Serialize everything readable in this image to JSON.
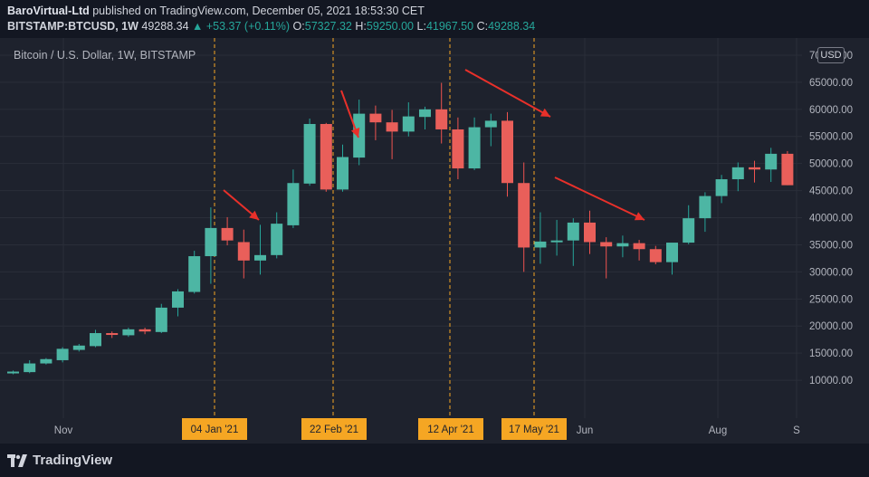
{
  "header": {
    "publisher": "BaroVirtual-Ltd",
    "published_text": "published on TradingView.com, December 05, 2021 18:53:30 CET",
    "symbol": "BITSTAMP:BTCUSD, 1W",
    "last_price": "49288.34",
    "change": "▲ +53.37 (+0.11%)",
    "o_label": "O:",
    "o_value": "57327.32",
    "h_label": "H:",
    "h_value": "59250.00",
    "l_label": "L:",
    "l_value": "41967.50",
    "c_label": "C:",
    "c_value": "49288.34"
  },
  "chart_title": "Bitcoin / U.S. Dollar, 1W, BITSTAMP",
  "currency_badge": "USD",
  "footer": {
    "logo_text": "TradingView"
  },
  "colors": {
    "up": "#26a69a",
    "down": "#ef5350",
    "up_body": "#4db6a4",
    "down_body": "#e95f5a",
    "grid": "#2a2e39",
    "axis_text": "#b2b5be",
    "vline": "#f5a623",
    "date_tag_bg": "#f5a623",
    "arrow": "#e8302a"
  },
  "chart_data": {
    "type": "candlestick",
    "title": "Bitcoin / U.S. Dollar, 1W, BITSTAMP",
    "y_axis_ticks": [
      "10000.00",
      "15000.00",
      "20000.00",
      "25000.00",
      "30000.00",
      "35000.00",
      "40000.00",
      "45000.00",
      "50000.00",
      "55000.00",
      "60000.00",
      "65000.00",
      "70000.00"
    ],
    "ylim": [
      3000,
      72500
    ],
    "x_axis_labels": [
      "Nov",
      "Jun",
      "Aug",
      "S"
    ],
    "highlighted_dates": [
      "04 Jan '21",
      "22 Feb '21",
      "12 Apr '21",
      "17 May '21"
    ],
    "candles": [
      {
        "o": 11300,
        "h": 11800,
        "l": 11100,
        "c": 11600
      },
      {
        "o": 11500,
        "h": 13700,
        "l": 11300,
        "c": 13100
      },
      {
        "o": 13100,
        "h": 14100,
        "l": 12900,
        "c": 13900
      },
      {
        "o": 13700,
        "h": 16100,
        "l": 13300,
        "c": 15800
      },
      {
        "o": 15600,
        "h": 16700,
        "l": 15300,
        "c": 16400
      },
      {
        "o": 16300,
        "h": 19300,
        "l": 16100,
        "c": 18700
      },
      {
        "o": 18700,
        "h": 19000,
        "l": 17800,
        "c": 18500
      },
      {
        "o": 18300,
        "h": 19700,
        "l": 18000,
        "c": 19400
      },
      {
        "o": 19400,
        "h": 19700,
        "l": 18500,
        "c": 19000
      },
      {
        "o": 18900,
        "h": 24100,
        "l": 18700,
        "c": 23400
      },
      {
        "o": 23400,
        "h": 26800,
        "l": 21800,
        "c": 26400
      },
      {
        "o": 26300,
        "h": 33900,
        "l": 26000,
        "c": 32900
      },
      {
        "o": 32900,
        "h": 41900,
        "l": 27800,
        "c": 38100
      },
      {
        "o": 38100,
        "h": 40100,
        "l": 34900,
        "c": 35800
      },
      {
        "o": 35500,
        "h": 37800,
        "l": 28800,
        "c": 32100
      },
      {
        "o": 32100,
        "h": 38700,
        "l": 29500,
        "c": 33100
      },
      {
        "o": 33100,
        "h": 41000,
        "l": 32500,
        "c": 38900
      },
      {
        "o": 38600,
        "h": 48900,
        "l": 38100,
        "c": 46400
      },
      {
        "o": 46300,
        "h": 58300,
        "l": 45900,
        "c": 57300
      },
      {
        "o": 57300,
        "h": 57500,
        "l": 44800,
        "c": 45200
      },
      {
        "o": 45200,
        "h": 53500,
        "l": 44800,
        "c": 51200
      },
      {
        "o": 51100,
        "h": 61800,
        "l": 49700,
        "c": 59200
      },
      {
        "o": 59200,
        "h": 60700,
        "l": 54300,
        "c": 57600
      },
      {
        "o": 57600,
        "h": 59900,
        "l": 50800,
        "c": 55900
      },
      {
        "o": 55900,
        "h": 61300,
        "l": 55000,
        "c": 58700
      },
      {
        "o": 58600,
        "h": 60500,
        "l": 56300,
        "c": 60000
      },
      {
        "o": 60000,
        "h": 64900,
        "l": 53700,
        "c": 56300
      },
      {
        "o": 56300,
        "h": 58500,
        "l": 47100,
        "c": 49100
      },
      {
        "o": 49100,
        "h": 58500,
        "l": 48800,
        "c": 56700
      },
      {
        "o": 56700,
        "h": 59200,
        "l": 53200,
        "c": 57900
      },
      {
        "o": 57900,
        "h": 59500,
        "l": 43900,
        "c": 46400
      },
      {
        "o": 46400,
        "h": 50200,
        "l": 30000,
        "c": 34500
      },
      {
        "o": 34500,
        "h": 41000,
        "l": 31500,
        "c": 35600
      },
      {
        "o": 35600,
        "h": 39600,
        "l": 33000,
        "c": 35800
      },
      {
        "o": 35800,
        "h": 39900,
        "l": 31100,
        "c": 39100
      },
      {
        "o": 39100,
        "h": 41300,
        "l": 33300,
        "c": 35500
      },
      {
        "o": 35500,
        "h": 36400,
        "l": 28800,
        "c": 34700
      },
      {
        "o": 34700,
        "h": 36700,
        "l": 32700,
        "c": 35300
      },
      {
        "o": 35300,
        "h": 35900,
        "l": 32100,
        "c": 34200
      },
      {
        "o": 34200,
        "h": 34800,
        "l": 31400,
        "c": 31800
      },
      {
        "o": 31800,
        "h": 35300,
        "l": 29500,
        "c": 35400
      },
      {
        "o": 35400,
        "h": 42300,
        "l": 35100,
        "c": 39900
      },
      {
        "o": 39900,
        "h": 44700,
        "l": 37400,
        "c": 44000
      },
      {
        "o": 44000,
        "h": 47900,
        "l": 42700,
        "c": 47100
      },
      {
        "o": 47100,
        "h": 50200,
        "l": 44900,
        "c": 49300
      },
      {
        "o": 49300,
        "h": 50500,
        "l": 46500,
        "c": 48900
      },
      {
        "o": 48900,
        "h": 52900,
        "l": 46600,
        "c": 51800
      },
      {
        "o": 51800,
        "h": 52300,
        "l": 46000,
        "c": 46000
      }
    ]
  }
}
